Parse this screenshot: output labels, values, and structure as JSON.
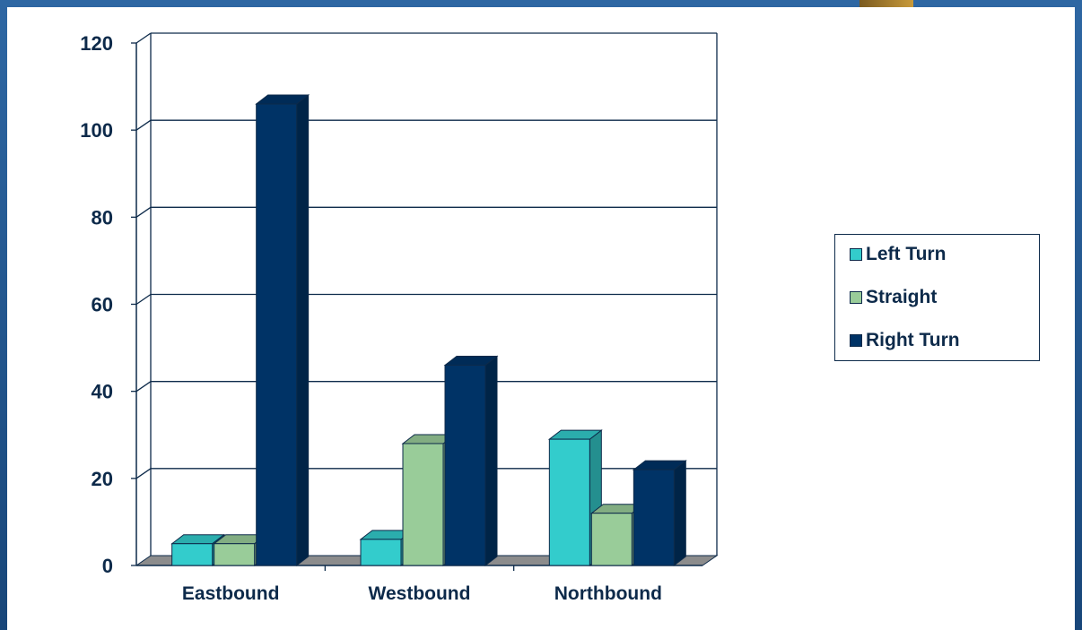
{
  "chart_data": {
    "type": "bar",
    "title": "",
    "xlabel": "",
    "ylabel": "",
    "categories": [
      "Eastbound",
      "Westbound",
      "Northbound"
    ],
    "series": [
      {
        "name": "Left Turn",
        "values": [
          5,
          6,
          29
        ],
        "color": "#33cccc"
      },
      {
        "name": "Straight",
        "values": [
          5,
          28,
          12
        ],
        "color": "#99cc99"
      },
      {
        "name": "Right Turn",
        "values": [
          106,
          46,
          22
        ],
        "color": "#003366"
      }
    ],
    "ylim": [
      0,
      120
    ],
    "yticks": [
      "0",
      "20",
      "40",
      "60",
      "80",
      "100",
      "120"
    ],
    "grid": true,
    "legend_position": "right",
    "style": "3d-clustered-column"
  }
}
